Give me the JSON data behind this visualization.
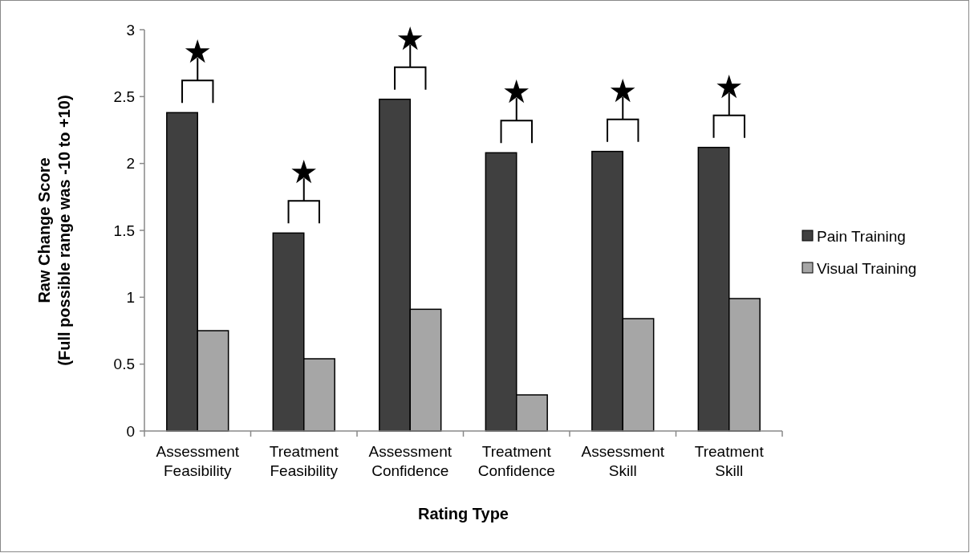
{
  "chart_data": {
    "type": "bar",
    "xlabel": "Rating Type",
    "ylabel": "Raw Change Score\n(Full possible range was -10 to +10)",
    "categories": [
      "Assessment\nFeasibility",
      "Treatment\nFeasibility",
      "Assessment\nConfidence",
      "Treatment\nConfidence",
      "Assessment\nSkill",
      "Treatment\nSkill"
    ],
    "series": [
      {
        "name": "Pain Training",
        "color": "#404040",
        "values": [
          2.38,
          1.48,
          2.48,
          2.08,
          2.09,
          2.12
        ]
      },
      {
        "name": "Visual Training",
        "color": "#a6a6a6",
        "values": [
          0.75,
          0.54,
          0.91,
          0.27,
          0.84,
          0.99
        ]
      }
    ],
    "ylim": [
      0,
      3
    ],
    "yticks": [
      0,
      0.5,
      1,
      1.5,
      2,
      2.5,
      3
    ],
    "legend": "right",
    "annotations": [
      "★",
      "★",
      "★",
      "★",
      "★",
      "★"
    ]
  }
}
